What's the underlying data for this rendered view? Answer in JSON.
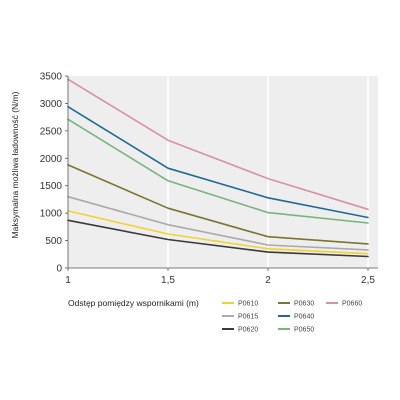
{
  "chart_data": {
    "type": "line",
    "title": "",
    "xlabel": "Odstęp pomiędzy wspornikami (m)",
    "ylabel": "Maksymalna możliwa ładowność (N/m)",
    "xlim": [
      1,
      2.55
    ],
    "ylim": [
      0,
      3500
    ],
    "x_ticks": [
      1,
      1.5,
      2,
      2.5
    ],
    "x_tick_labels": [
      "1",
      "1,5",
      "2",
      "2,5"
    ],
    "y_ticks": [
      0,
      500,
      1000,
      1500,
      2000,
      2500,
      3000,
      3500
    ],
    "y_tick_labels": [
      "0",
      "500",
      "1000",
      "1500",
      "2000",
      "2500",
      "3000",
      "3500"
    ],
    "grid": "vertical",
    "legend_position": "bottom",
    "x": [
      1,
      1.5,
      2,
      2.5
    ],
    "series": [
      {
        "name": "P0610",
        "color": "#f2d22e",
        "values": [
          1040,
          620,
          350,
          260
        ]
      },
      {
        "name": "P0615",
        "color": "#aaaaaa",
        "values": [
          1300,
          790,
          420,
          330
        ]
      },
      {
        "name": "P0620",
        "color": "#3a3a3a",
        "values": [
          870,
          520,
          290,
          210
        ]
      },
      {
        "name": "P0630",
        "color": "#7a7530",
        "values": [
          1880,
          1090,
          570,
          440
        ]
      },
      {
        "name": "P0640",
        "color": "#1f6b96",
        "values": [
          2940,
          1820,
          1280,
          920
        ]
      },
      {
        "name": "P0650",
        "color": "#78b47c",
        "values": [
          2710,
          1590,
          1010,
          820
        ]
      },
      {
        "name": "P0660",
        "color": "#d890a8",
        "values": [
          3440,
          2330,
          1630,
          1070
        ]
      }
    ]
  }
}
